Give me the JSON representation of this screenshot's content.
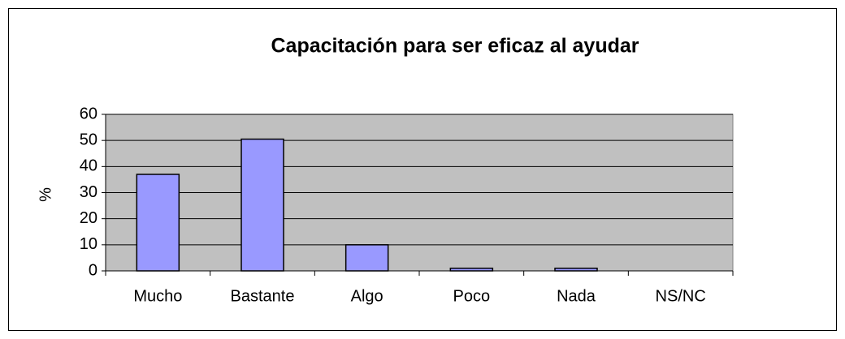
{
  "chart_data": {
    "type": "bar",
    "title": "Capacitación para ser eficaz al ayudar",
    "y_label": "%",
    "categories": [
      "Mucho",
      "Bastante",
      "Algo",
      "Poco",
      "Nada",
      "NS/NC"
    ],
    "values": [
      37,
      50.5,
      10,
      1,
      1,
      0
    ],
    "color": "#9999ff",
    "ylim": [
      0,
      60
    ],
    "yticks": [
      0,
      10,
      20,
      30,
      40,
      50,
      60
    ],
    "grid": true
  }
}
